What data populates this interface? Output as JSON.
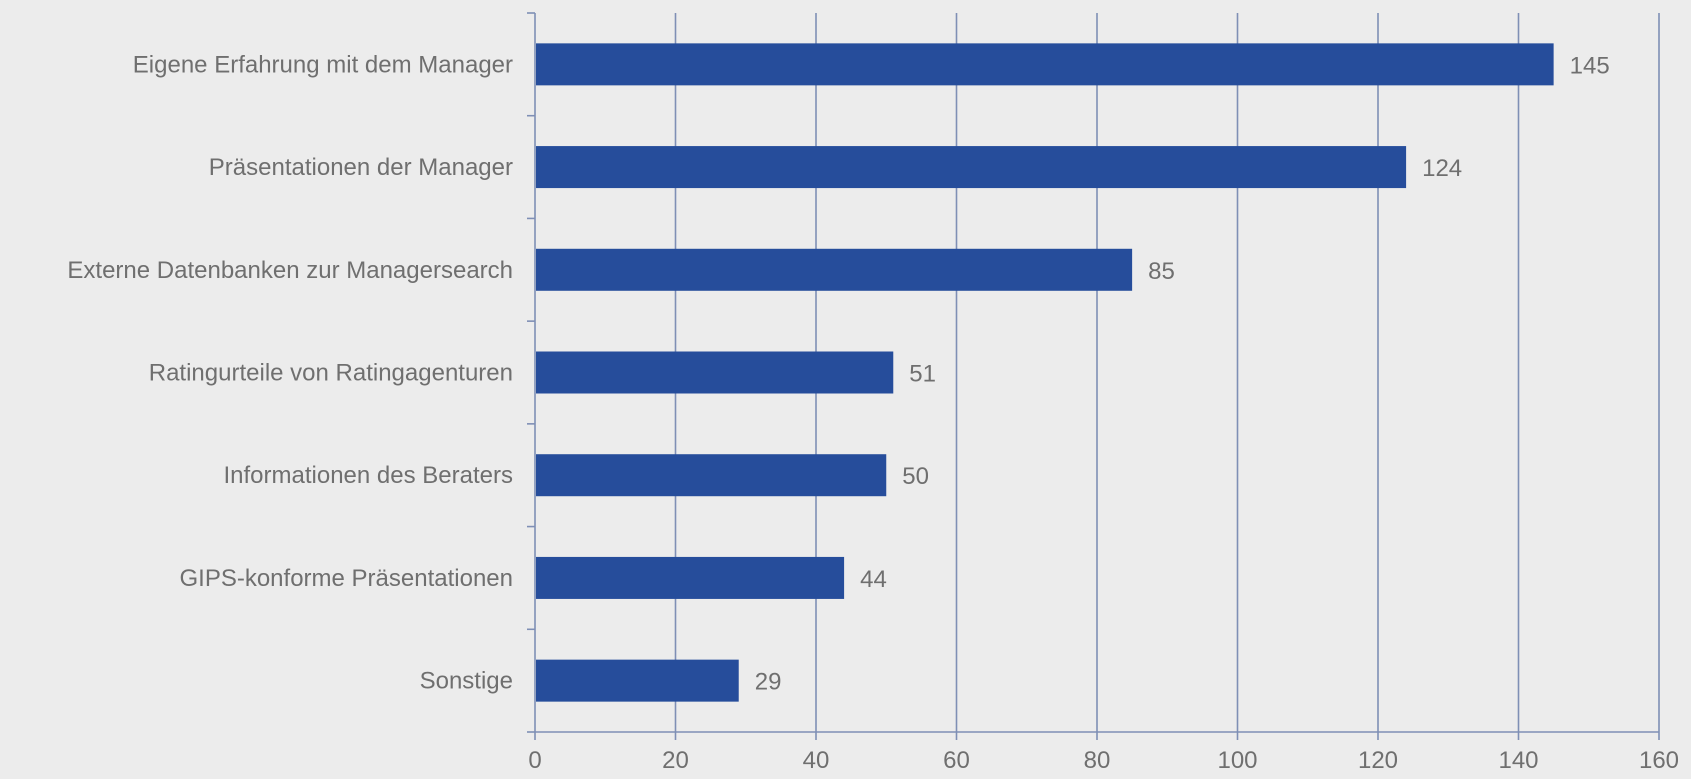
{
  "chart_data": {
    "type": "bar",
    "orientation": "horizontal",
    "categories": [
      "Eigene Erfahrung mit dem Manager",
      "Präsentationen der Manager",
      "Externe Datenbanken zur Managersearch",
      "Ratingurteile von Ratingagenturen",
      "Informationen des Beraters",
      "GIPS-konforme Präsentationen",
      "Sonstige"
    ],
    "values": [
      145,
      124,
      85,
      51,
      50,
      44,
      29
    ],
    "xlim": [
      0,
      160
    ],
    "x_ticks": [
      0,
      20,
      40,
      60,
      80,
      100,
      120,
      140,
      160
    ],
    "grid": "vertical",
    "legend": "none",
    "colors": {
      "bar": "#264d9b",
      "grid": "#7f8fb5",
      "text": "#6f6f6f",
      "background": "#ececec"
    }
  }
}
